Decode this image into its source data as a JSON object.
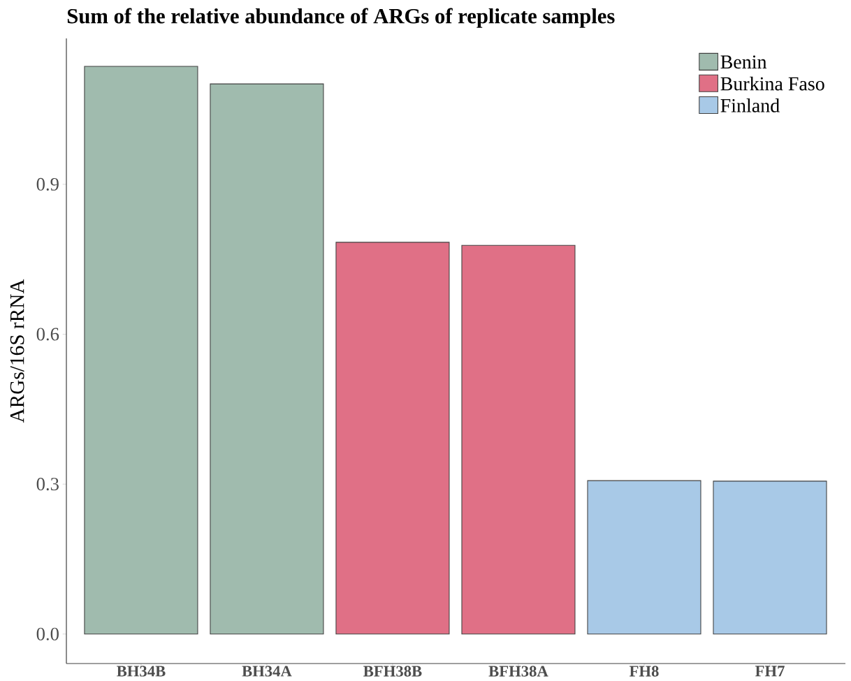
{
  "chart_data": {
    "type": "bar",
    "title": "Sum of the relative abundance of ARGs of replicate samples",
    "ylabel": "ARGs/16S rRNA",
    "categories": [
      "BH34B",
      "BH34A",
      "BFH38B",
      "BFH38A",
      "FH8",
      "FH7"
    ],
    "series": [
      {
        "name": "Benin",
        "color": "#a0bbae",
        "values": [
          1.136,
          1.101,
          null,
          null,
          null,
          null
        ]
      },
      {
        "name": "Burkina Faso",
        "color": "#e07086",
        "values": [
          null,
          null,
          0.784,
          0.778,
          null,
          null
        ]
      },
      {
        "name": "Finland",
        "color": "#a8c9e7",
        "values": [
          null,
          null,
          null,
          null,
          0.307,
          0.306
        ]
      }
    ],
    "ylim": [
      -0.059,
      1.192
    ],
    "yticks": [
      {
        "value": 0,
        "label": "0.0"
      },
      0.3,
      0.6,
      0.9
    ],
    "grid": false,
    "legend": "top right"
  }
}
